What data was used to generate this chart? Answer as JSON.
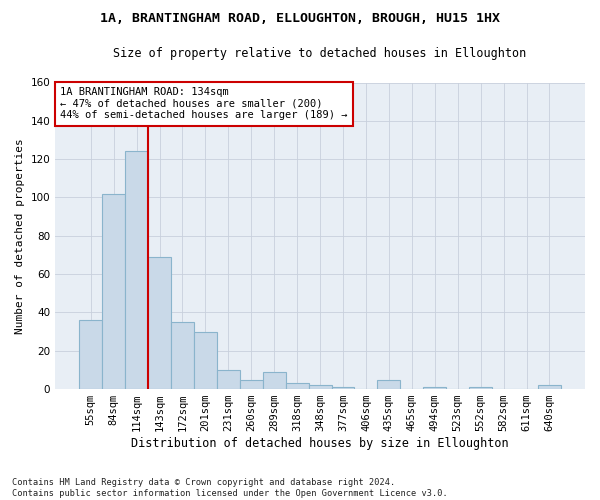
{
  "title": "1A, BRANTINGHAM ROAD, ELLOUGHTON, BROUGH, HU15 1HX",
  "subtitle": "Size of property relative to detached houses in Elloughton",
  "xlabel": "Distribution of detached houses by size in Elloughton",
  "ylabel": "Number of detached properties",
  "footer_line1": "Contains HM Land Registry data © Crown copyright and database right 2024.",
  "footer_line2": "Contains public sector information licensed under the Open Government Licence v3.0.",
  "bar_labels": [
    "55sqm",
    "84sqm",
    "114sqm",
    "143sqm",
    "172sqm",
    "201sqm",
    "231sqm",
    "260sqm",
    "289sqm",
    "318sqm",
    "348sqm",
    "377sqm",
    "406sqm",
    "435sqm",
    "465sqm",
    "494sqm",
    "523sqm",
    "552sqm",
    "582sqm",
    "611sqm",
    "640sqm"
  ],
  "bar_values": [
    36,
    102,
    124,
    69,
    35,
    30,
    10,
    5,
    9,
    3,
    2,
    1,
    0,
    5,
    0,
    1,
    0,
    1,
    0,
    0,
    2
  ],
  "bar_color": "#c9d9e8",
  "bar_edge_color": "#8ab4cc",
  "vline_index": 2,
  "vline_color": "#cc0000",
  "annotation_line1": "1A BRANTINGHAM ROAD: 134sqm",
  "annotation_line2": "← 47% of detached houses are smaller (200)",
  "annotation_line3": "44% of semi-detached houses are larger (189) →",
  "annotation_box_color": "#cc0000",
  "ylim": [
    0,
    160
  ],
  "yticks": [
    0,
    20,
    40,
    60,
    80,
    100,
    120,
    140,
    160
  ],
  "grid_color": "#c8d0dc",
  "background_color": "#e8eef5",
  "title_fontsize": 9.5,
  "subtitle_fontsize": 8.5,
  "xlabel_fontsize": 8.5,
  "ylabel_fontsize": 8,
  "tick_fontsize": 7.5,
  "annotation_fontsize": 7.5,
  "footer_fontsize": 6.2
}
